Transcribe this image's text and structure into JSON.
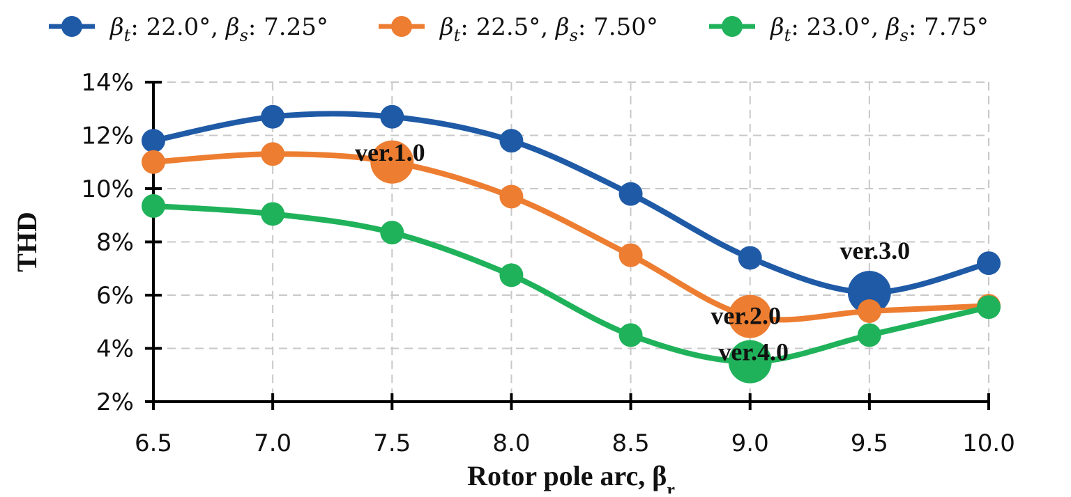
{
  "chart_data": {
    "type": "line",
    "x": [
      6.5,
      7.0,
      7.5,
      8.0,
      8.5,
      9.0,
      9.5,
      10.0
    ],
    "x_tick_labels": [
      "6.5",
      "7.0",
      "7.5",
      "8.0",
      "8.5",
      "9.0",
      "9.5",
      "10.0"
    ],
    "ylim": [
      2,
      14
    ],
    "y_tick_labels": [
      "2%",
      "4%",
      "6%",
      "8%",
      "10%",
      "12%",
      "14%"
    ],
    "y_ticks": [
      2,
      4,
      6,
      8,
      10,
      12,
      14
    ],
    "ylabel": "THD",
    "xlabel": "Rotor pole arc, β",
    "xlabel_sub": "r",
    "grid": true,
    "legend_position": "top",
    "series": [
      {
        "legend": {
          "t_value": ": 22.0°, ",
          "s_value": ": 7.25°"
        },
        "color": "#1f5aa6",
        "values": [
          11.8,
          12.7,
          12.7,
          11.8,
          9.8,
          7.4,
          6.1,
          7.2
        ]
      },
      {
        "legend": {
          "t_value": ": 22.5°, ",
          "s_value": ": 7.50°"
        },
        "color": "#ed7d31",
        "values": [
          11.0,
          11.3,
          11.0,
          9.7,
          7.5,
          5.2,
          5.4,
          5.6
        ]
      },
      {
        "legend": {
          "t_value": ": 23.0°, ",
          "s_value": ": 7.75°"
        },
        "color": "#1fb25a",
        "values": [
          9.35,
          9.05,
          8.35,
          6.75,
          4.5,
          3.5,
          4.5,
          5.55
        ]
      }
    ],
    "annotations": [
      {
        "text": "ver.1.0",
        "series": 1,
        "x": 7.5
      },
      {
        "text": "ver.2.0",
        "series": 1,
        "x": 9.0
      },
      {
        "text": "ver.3.0",
        "series": 0,
        "x": 9.5
      },
      {
        "text": "ver.4.0",
        "series": 2,
        "x": 9.0
      }
    ],
    "legend_symbols": {
      "main": "β",
      "sub_t": "t",
      "sub_s": "s"
    }
  }
}
